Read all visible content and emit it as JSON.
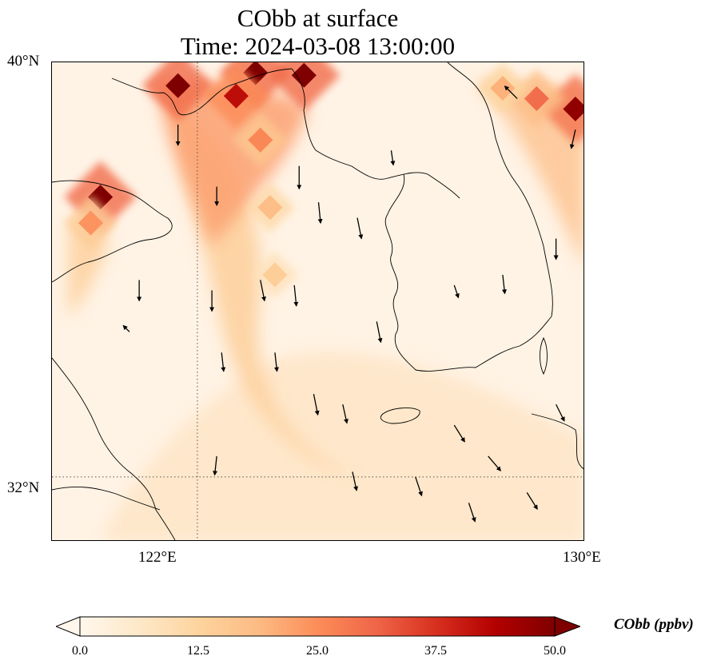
{
  "title": {
    "line1": "CObb at surface",
    "line2": "Time: 2024-03-08 13:00:00"
  },
  "map": {
    "lon_range": [
      119,
      130
    ],
    "lat_range": [
      30.75,
      40
    ],
    "lat_labels": [
      "40°N",
      "32°N"
    ],
    "lon_labels": [
      "122°E",
      "130°E"
    ],
    "gridlines": {
      "lon": 122,
      "lat": 32,
      "style": "dotted"
    }
  },
  "colorbar": {
    "label": "CObb (ppbv)",
    "ticks": [
      "0.0",
      "12.5",
      "25.0",
      "37.5",
      "50.0"
    ],
    "min": 0,
    "max": 50,
    "extend": "both",
    "cmap": [
      "#fff7ec",
      "#fee8c8",
      "#fdd49e",
      "#fdbb84",
      "#fc8d59",
      "#ef6548",
      "#d7301f",
      "#b30000",
      "#7f0000"
    ]
  },
  "chart_data": {
    "type": "heatmap",
    "variable": "CObb",
    "units": "ppbv",
    "level": "surface",
    "time": "2024-03-08 13:00:00",
    "hotspots": [
      {
        "lon": 121.6,
        "lat": 39.55,
        "value": 50
      },
      {
        "lon": 123.2,
        "lat": 39.8,
        "value": 50
      },
      {
        "lon": 124.2,
        "lat": 39.75,
        "value": 50
      },
      {
        "lon": 122.8,
        "lat": 39.35,
        "value": 42
      },
      {
        "lon": 123.3,
        "lat": 38.5,
        "value": 26
      },
      {
        "lon": 123.5,
        "lat": 37.2,
        "value": 18
      },
      {
        "lon": 123.6,
        "lat": 35.9,
        "value": 14
      },
      {
        "lon": 120.0,
        "lat": 37.4,
        "value": 50
      },
      {
        "lon": 119.8,
        "lat": 36.9,
        "value": 24
      },
      {
        "lon": 129.8,
        "lat": 39.1,
        "value": 48
      },
      {
        "lon": 129.0,
        "lat": 39.3,
        "value": 30
      },
      {
        "lon": 128.3,
        "lat": 39.5,
        "value": 20
      }
    ],
    "wind_vectors": [
      {
        "lon": 121.6,
        "lat": 38.8,
        "u": 0.0,
        "v": -1.0
      },
      {
        "lon": 122.4,
        "lat": 37.6,
        "u": 0.0,
        "v": -0.9
      },
      {
        "lon": 124.1,
        "lat": 38.0,
        "u": 0.0,
        "v": -1.1
      },
      {
        "lon": 124.5,
        "lat": 37.3,
        "u": 0.1,
        "v": -1.0
      },
      {
        "lon": 125.3,
        "lat": 37.0,
        "u": 0.2,
        "v": -1.0
      },
      {
        "lon": 120.8,
        "lat": 35.8,
        "u": 0.0,
        "v": -1.0
      },
      {
        "lon": 122.3,
        "lat": 35.6,
        "u": 0.0,
        "v": -1.0
      },
      {
        "lon": 123.3,
        "lat": 35.8,
        "u": 0.2,
        "v": -1.0
      },
      {
        "lon": 124.0,
        "lat": 35.7,
        "u": 0.1,
        "v": -1.0
      },
      {
        "lon": 125.7,
        "lat": 35.0,
        "u": 0.2,
        "v": -1.0
      },
      {
        "lon": 122.5,
        "lat": 34.4,
        "u": 0.1,
        "v": -0.9
      },
      {
        "lon": 123.6,
        "lat": 34.4,
        "u": 0.1,
        "v": -0.9
      },
      {
        "lon": 124.4,
        "lat": 33.6,
        "u": 0.2,
        "v": -1.0
      },
      {
        "lon": 125.0,
        "lat": 33.4,
        "u": 0.2,
        "v": -0.9
      },
      {
        "lon": 127.3,
        "lat": 33.0,
        "u": 0.5,
        "v": -0.8
      },
      {
        "lon": 128.0,
        "lat": 32.4,
        "u": 0.6,
        "v": -0.7
      },
      {
        "lon": 126.5,
        "lat": 32.0,
        "u": 0.3,
        "v": -0.9
      },
      {
        "lon": 127.6,
        "lat": 31.5,
        "u": 0.3,
        "v": -0.9
      },
      {
        "lon": 128.8,
        "lat": 31.7,
        "u": 0.5,
        "v": -0.8
      },
      {
        "lon": 122.4,
        "lat": 32.4,
        "u": -0.1,
        "v": -0.9
      },
      {
        "lon": 125.2,
        "lat": 32.1,
        "u": 0.2,
        "v": -0.9
      },
      {
        "lon": 129.4,
        "lat": 33.4,
        "u": 0.4,
        "v": -0.8
      },
      {
        "lon": 128.3,
        "lat": 35.9,
        "u": 0.1,
        "v": -0.9
      },
      {
        "lon": 129.4,
        "lat": 36.6,
        "u": 0.0,
        "v": -1.0
      },
      {
        "lon": 127.3,
        "lat": 35.7,
        "u": 0.2,
        "v": -0.6
      },
      {
        "lon": 126.0,
        "lat": 38.3,
        "u": 0.1,
        "v": -0.7
      },
      {
        "lon": 129.8,
        "lat": 38.7,
        "u": -0.2,
        "v": -0.9
      },
      {
        "lon": 120.6,
        "lat": 34.8,
        "u": -0.3,
        "v": 0.3
      },
      {
        "lon": 128.6,
        "lat": 39.3,
        "u": -0.6,
        "v": 0.6
      }
    ]
  }
}
